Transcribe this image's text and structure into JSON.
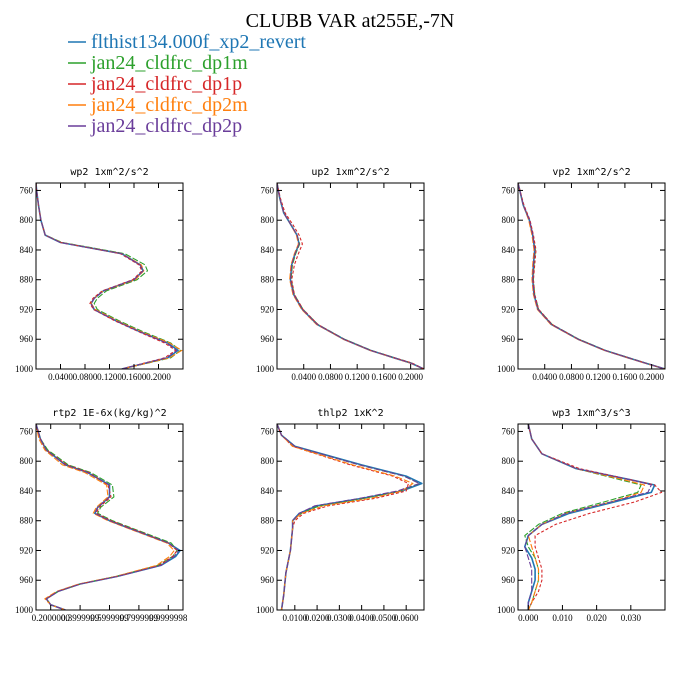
{
  "figure": {
    "title": "CLUBB VAR at255E,-7N",
    "legend": [
      {
        "name": "flthist134.000f_xp2_revert",
        "color": "#1f77b4"
      },
      {
        "name": "jan24_cldfrc_dp1m",
        "color": "#2ca02c"
      },
      {
        "name": "jan24_cldfrc_dp1p",
        "color": "#d62728"
      },
      {
        "name": "jan24_cldfrc_dp2m",
        "color": "#ff7f0e"
      },
      {
        "name": "jan24_cldfrc_dp2p",
        "color": "#6a3d9a"
      }
    ]
  },
  "chart_data": [
    {
      "type": "line",
      "title": "wp2  1xm^2/s^2",
      "ylim": [
        1000,
        750
      ],
      "xlim": [
        0,
        0.24
      ],
      "yticks": [
        "760",
        "800",
        "840",
        "880",
        "920",
        "960",
        "1000"
      ],
      "xticks": [
        "0.0400",
        "0.0800",
        "0.1200",
        "0.1600",
        "0.2000"
      ],
      "y": [
        750,
        760,
        780,
        800,
        820,
        830,
        845,
        860,
        868,
        880,
        895,
        905,
        912,
        920,
        935,
        950,
        965,
        975,
        985,
        1000
      ],
      "series": [
        {
          "name": "flthist134.000f_xp2_revert",
          "x": [
            0.0,
            0.001,
            0.004,
            0.008,
            0.015,
            0.04,
            0.14,
            0.17,
            0.175,
            0.16,
            0.11,
            0.095,
            0.09,
            0.095,
            0.13,
            0.17,
            0.215,
            0.232,
            0.215,
            0.14
          ]
        },
        {
          "name": "jan24_cldfrc_dp1m",
          "x": [
            0.0,
            0.001,
            0.004,
            0.008,
            0.015,
            0.043,
            0.145,
            0.178,
            0.182,
            0.165,
            0.115,
            0.1,
            0.095,
            0.1,
            0.135,
            0.175,
            0.22,
            0.236,
            0.22,
            0.14
          ]
        },
        {
          "name": "jan24_cldfrc_dp1p",
          "x": [
            0.0,
            0.001,
            0.004,
            0.008,
            0.015,
            0.04,
            0.138,
            0.168,
            0.173,
            0.158,
            0.108,
            0.093,
            0.088,
            0.094,
            0.128,
            0.168,
            0.21,
            0.228,
            0.21,
            0.14
          ]
        },
        {
          "name": "jan24_cldfrc_dp2m",
          "x": [
            0.0,
            0.001,
            0.004,
            0.008,
            0.015,
            0.041,
            0.14,
            0.172,
            0.176,
            0.162,
            0.11,
            0.095,
            0.09,
            0.097,
            0.132,
            0.172,
            0.218,
            0.238,
            0.218,
            0.14
          ]
        },
        {
          "name": "jan24_cldfrc_dp2p",
          "x": [
            0.0,
            0.001,
            0.004,
            0.008,
            0.015,
            0.04,
            0.14,
            0.17,
            0.175,
            0.16,
            0.11,
            0.095,
            0.09,
            0.095,
            0.13,
            0.17,
            0.213,
            0.23,
            0.213,
            0.14
          ]
        }
      ]
    },
    {
      "type": "line",
      "title": "up2  1xm^2/s^2",
      "ylim": [
        1000,
        750
      ],
      "xlim": [
        0,
        0.22
      ],
      "yticks": [
        "760",
        "800",
        "840",
        "880",
        "920",
        "960",
        "1000"
      ],
      "xticks": [
        "0.0400",
        "0.0800",
        "0.1200",
        "0.1600",
        "0.2000"
      ],
      "y": [
        750,
        770,
        790,
        805,
        820,
        832,
        845,
        860,
        880,
        900,
        920,
        940,
        960,
        975,
        985,
        992,
        1000
      ],
      "series": [
        {
          "name": "flthist134.000f_xp2_revert",
          "x": [
            0.0,
            0.004,
            0.01,
            0.02,
            0.03,
            0.033,
            0.027,
            0.022,
            0.02,
            0.025,
            0.038,
            0.06,
            0.1,
            0.14,
            0.175,
            0.2,
            0.22
          ]
        },
        {
          "name": "jan24_cldfrc_dp1m",
          "x": [
            0.0,
            0.004,
            0.01,
            0.02,
            0.03,
            0.034,
            0.028,
            0.023,
            0.021,
            0.026,
            0.039,
            0.061,
            0.101,
            0.141,
            0.176,
            0.201,
            0.22
          ]
        },
        {
          "name": "jan24_cldfrc_dp1p",
          "x": [
            0.0,
            0.005,
            0.012,
            0.023,
            0.033,
            0.038,
            0.032,
            0.026,
            0.022,
            0.026,
            0.039,
            0.061,
            0.1,
            0.14,
            0.176,
            0.202,
            0.22
          ]
        },
        {
          "name": "jan24_cldfrc_dp2m",
          "x": [
            0.0,
            0.004,
            0.01,
            0.02,
            0.029,
            0.032,
            0.026,
            0.021,
            0.019,
            0.024,
            0.037,
            0.059,
            0.099,
            0.139,
            0.174,
            0.199,
            0.22
          ]
        },
        {
          "name": "jan24_cldfrc_dp2p",
          "x": [
            0.0,
            0.004,
            0.01,
            0.02,
            0.03,
            0.033,
            0.027,
            0.022,
            0.02,
            0.025,
            0.038,
            0.06,
            0.1,
            0.14,
            0.175,
            0.2,
            0.22
          ]
        }
      ]
    },
    {
      "type": "line",
      "title": "vp2  1xm^2/s^2",
      "ylim": [
        1000,
        750
      ],
      "xlim": [
        0,
        0.22
      ],
      "yticks": [
        "760",
        "800",
        "840",
        "880",
        "920",
        "960",
        "1000"
      ],
      "xticks": [
        "0.0400",
        "0.0800",
        "0.1200",
        "0.1600",
        "0.2000"
      ],
      "y": [
        750,
        780,
        800,
        820,
        840,
        860,
        880,
        900,
        920,
        940,
        960,
        975,
        985,
        992,
        1000
      ],
      "series": [
        {
          "name": "flthist134.000f_xp2_revert",
          "x": [
            0.0,
            0.008,
            0.017,
            0.022,
            0.025,
            0.023,
            0.022,
            0.024,
            0.03,
            0.05,
            0.09,
            0.13,
            0.165,
            0.19,
            0.22
          ]
        },
        {
          "name": "jan24_cldfrc_dp1m",
          "x": [
            0.0,
            0.008,
            0.017,
            0.022,
            0.026,
            0.024,
            0.023,
            0.025,
            0.031,
            0.051,
            0.091,
            0.131,
            0.166,
            0.191,
            0.22
          ]
        },
        {
          "name": "jan24_cldfrc_dp1p",
          "x": [
            0.0,
            0.009,
            0.018,
            0.023,
            0.027,
            0.025,
            0.023,
            0.025,
            0.031,
            0.051,
            0.09,
            0.13,
            0.165,
            0.19,
            0.22
          ]
        },
        {
          "name": "jan24_cldfrc_dp2m",
          "x": [
            0.0,
            0.008,
            0.016,
            0.021,
            0.024,
            0.022,
            0.021,
            0.023,
            0.029,
            0.049,
            0.089,
            0.129,
            0.164,
            0.189,
            0.22
          ]
        },
        {
          "name": "jan24_cldfrc_dp2p",
          "x": [
            0.0,
            0.008,
            0.017,
            0.022,
            0.025,
            0.023,
            0.022,
            0.024,
            0.03,
            0.05,
            0.09,
            0.13,
            0.165,
            0.19,
            0.22
          ]
        }
      ]
    },
    {
      "type": "line",
      "title": "rtp2  1E-6x(kg/kg)^2",
      "ylim": [
        1000,
        750
      ],
      "xlim": [
        0.1,
        1.1
      ],
      "yticks": [
        "760",
        "800",
        "840",
        "880",
        "920",
        "960",
        "1000"
      ],
      "xticks": [
        "0.2000000",
        "0.3999999",
        "0.5999999",
        "0.7999999",
        "0.9999998"
      ],
      "y": [
        750,
        770,
        785,
        805,
        815,
        832,
        848,
        862,
        870,
        880,
        895,
        910,
        920,
        928,
        940,
        955,
        965,
        975,
        985,
        993,
        1000
      ],
      "series": [
        {
          "name": "flthist134.000f_xp2_revert",
          "x": [
            0.1,
            0.13,
            0.17,
            0.3,
            0.45,
            0.6,
            0.6,
            0.52,
            0.5,
            0.6,
            0.8,
            1.0,
            1.08,
            1.05,
            0.95,
            0.65,
            0.4,
            0.25,
            0.17,
            0.2,
            0.3
          ]
        },
        {
          "name": "jan24_cldfrc_dp1m",
          "x": [
            0.1,
            0.13,
            0.18,
            0.32,
            0.47,
            0.62,
            0.63,
            0.54,
            0.52,
            0.62,
            0.82,
            1.02,
            1.06,
            1.03,
            0.93,
            0.64,
            0.4,
            0.25,
            0.17,
            0.2,
            0.3
          ]
        },
        {
          "name": "jan24_cldfrc_dp1p",
          "x": [
            0.1,
            0.13,
            0.17,
            0.31,
            0.46,
            0.59,
            0.61,
            0.53,
            0.51,
            0.61,
            0.81,
            1.0,
            1.06,
            1.03,
            0.94,
            0.65,
            0.4,
            0.25,
            0.17,
            0.2,
            0.3
          ]
        },
        {
          "name": "jan24_cldfrc_dp2m",
          "x": [
            0.1,
            0.12,
            0.16,
            0.28,
            0.43,
            0.58,
            0.59,
            0.51,
            0.49,
            0.59,
            0.79,
            0.99,
            1.04,
            1.01,
            0.92,
            0.64,
            0.39,
            0.24,
            0.16,
            0.2,
            0.3
          ]
        },
        {
          "name": "jan24_cldfrc_dp2p",
          "x": [
            0.1,
            0.13,
            0.17,
            0.3,
            0.45,
            0.6,
            0.6,
            0.52,
            0.5,
            0.6,
            0.8,
            1.0,
            1.07,
            1.04,
            0.95,
            0.65,
            0.4,
            0.25,
            0.17,
            0.2,
            0.3
          ]
        }
      ]
    },
    {
      "type": "line",
      "title": "thlp2  1xK^2",
      "ylim": [
        1000,
        750
      ],
      "xlim": [
        0.002,
        0.068
      ],
      "yticks": [
        "760",
        "800",
        "840",
        "880",
        "920",
        "960",
        "1000"
      ],
      "xticks": [
        "0.0100",
        "0.0200",
        "0.0300",
        "0.0400",
        "0.0500",
        "0.0600"
      ],
      "y": [
        750,
        765,
        780,
        805,
        820,
        830,
        840,
        850,
        860,
        870,
        880,
        890,
        920,
        950,
        980,
        1000
      ],
      "series": [
        {
          "name": "flthist134.000f_xp2_revert",
          "x": [
            0.002,
            0.004,
            0.01,
            0.04,
            0.06,
            0.067,
            0.058,
            0.04,
            0.02,
            0.012,
            0.009,
            0.009,
            0.008,
            0.006,
            0.005,
            0.004
          ]
        },
        {
          "name": "jan24_cldfrc_dp1m",
          "x": [
            0.002,
            0.004,
            0.01,
            0.039,
            0.059,
            0.066,
            0.057,
            0.041,
            0.021,
            0.013,
            0.009,
            0.009,
            0.008,
            0.006,
            0.005,
            0.004
          ]
        },
        {
          "name": "jan24_cldfrc_dp1p",
          "x": [
            0.002,
            0.004,
            0.009,
            0.035,
            0.054,
            0.061,
            0.06,
            0.046,
            0.025,
            0.014,
            0.01,
            0.009,
            0.008,
            0.006,
            0.005,
            0.004
          ]
        },
        {
          "name": "jan24_cldfrc_dp2m",
          "x": [
            0.002,
            0.004,
            0.009,
            0.036,
            0.055,
            0.063,
            0.058,
            0.044,
            0.023,
            0.013,
            0.009,
            0.009,
            0.008,
            0.006,
            0.005,
            0.004
          ]
        },
        {
          "name": "jan24_cldfrc_dp2p",
          "x": [
            0.002,
            0.004,
            0.01,
            0.039,
            0.059,
            0.066,
            0.056,
            0.039,
            0.019,
            0.012,
            0.009,
            0.009,
            0.008,
            0.006,
            0.005,
            0.004
          ]
        }
      ]
    },
    {
      "type": "line",
      "title": "wp3  1xm^3/s^3",
      "ylim": [
        1000,
        750
      ],
      "xlim": [
        -0.003,
        0.04
      ],
      "yticks": [
        "760",
        "800",
        "840",
        "880",
        "920",
        "960",
        "1000"
      ],
      "xticks": [
        "0.000",
        "0.010",
        "0.020",
        "0.030"
      ],
      "y": [
        750,
        770,
        790,
        810,
        825,
        832,
        842,
        855,
        870,
        885,
        900,
        915,
        930,
        945,
        960,
        975,
        990,
        1000
      ],
      "series": [
        {
          "name": "flthist134.000f_xp2_revert",
          "x": [
            0.0,
            0.001,
            0.004,
            0.014,
            0.03,
            0.037,
            0.036,
            0.025,
            0.012,
            0.004,
            0.0,
            -0.001,
            0.001,
            0.002,
            0.002,
            0.001,
            0.0,
            0.0
          ]
        },
        {
          "name": "jan24_cldfrc_dp1m",
          "x": [
            0.0,
            0.001,
            0.004,
            0.014,
            0.027,
            0.033,
            0.032,
            0.022,
            0.01,
            0.003,
            -0.001,
            0.0,
            0.002,
            0.003,
            0.003,
            0.002,
            0.001,
            0.0
          ]
        },
        {
          "name": "jan24_cldfrc_dp1p",
          "x": [
            0.0,
            0.001,
            0.004,
            0.015,
            0.03,
            0.037,
            0.039,
            0.031,
            0.018,
            0.008,
            0.002,
            0.002,
            0.003,
            0.004,
            0.004,
            0.003,
            0.001,
            0.0
          ]
        },
        {
          "name": "jan24_cldfrc_dp2m",
          "x": [
            0.0,
            0.001,
            0.004,
            0.014,
            0.028,
            0.034,
            0.033,
            0.024,
            0.011,
            0.004,
            0.0,
            0.001,
            0.002,
            0.003,
            0.003,
            0.002,
            0.001,
            0.0
          ]
        },
        {
          "name": "jan24_cldfrc_dp2p",
          "x": [
            0.0,
            0.001,
            0.004,
            0.014,
            0.03,
            0.036,
            0.035,
            0.024,
            0.011,
            0.004,
            0.0,
            -0.001,
            0.0,
            0.001,
            0.001,
            0.001,
            0.0,
            0.0
          ]
        }
      ]
    }
  ]
}
